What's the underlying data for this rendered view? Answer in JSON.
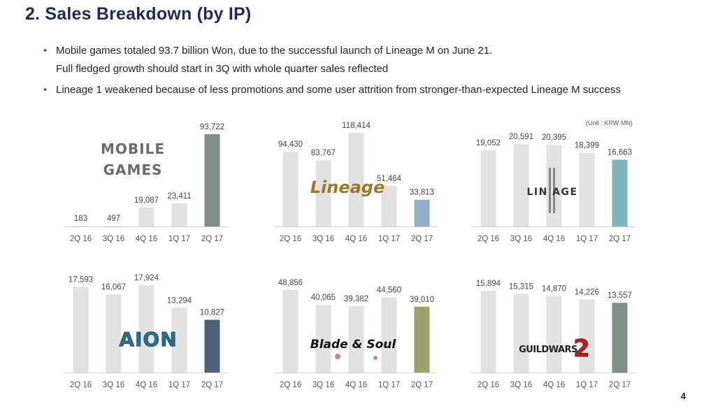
{
  "title": "2. Sales Breakdown (by IP)",
  "bullets": [
    {
      "line1": "Mobile games totaled 93.7 billion Won, due to the successful launch of Lineage M on June 21.",
      "line2": "Full fledged growth should start in 3Q with whole quarter sales reflected"
    },
    {
      "line1": "Lineage 1 weakened because of less promotions and some user attrition from stronger-than-expected Lineage M success",
      "line2": ""
    }
  ],
  "unit_note": "(Unit : KRW MN)",
  "page_number": "4",
  "chart_data": [
    {
      "type": "bar",
      "name_label": "MOBILE GAMES",
      "categories": [
        "2Q 16",
        "3Q 16",
        "4Q 16",
        "1Q 17",
        "2Q 17"
      ],
      "values": [
        183,
        497,
        19087,
        23411,
        93722
      ],
      "labels": [
        "183",
        "497",
        "19,087",
        "23,411",
        "93,722"
      ],
      "highlight_color": "#7f8f88",
      "base_color": "#e2e2e2"
    },
    {
      "type": "bar",
      "name_label": "Lineage",
      "categories": [
        "2Q 16",
        "3Q 16",
        "4Q 16",
        "1Q 17",
        "2Q 17"
      ],
      "values": [
        94430,
        83767,
        118414,
        51464,
        33813
      ],
      "labels": [
        "94,430",
        "83,767",
        "118,414",
        "51,464",
        "33,813"
      ],
      "highlight_color": "#93aec8",
      "base_color": "#e2e2e2"
    },
    {
      "type": "bar",
      "name_label": "LINEAGE II",
      "categories": [
        "2Q 16",
        "3Q 16",
        "4Q 16",
        "1Q 17",
        "2Q 17"
      ],
      "values": [
        19052,
        20591,
        20395,
        18399,
        16663
      ],
      "labels": [
        "19,052",
        "20,591",
        "20,395",
        "18,399",
        "16,663"
      ],
      "highlight_color": "#7fb4b8",
      "base_color": "#e2e2e2"
    },
    {
      "type": "bar",
      "name_label": "AION",
      "categories": [
        "2Q 16",
        "3Q 16",
        "4Q 16",
        "1Q 17",
        "2Q 17"
      ],
      "values": [
        17593,
        16067,
        17924,
        13294,
        10827
      ],
      "labels": [
        "17,593",
        "16,067",
        "17,924",
        "13,294",
        "10,827"
      ],
      "highlight_color": "#4e6177",
      "base_color": "#e2e2e2"
    },
    {
      "type": "bar",
      "name_label": "Blade & Soul",
      "categories": [
        "2Q 16",
        "3Q 16",
        "4Q 16",
        "1Q 17",
        "2Q 17"
      ],
      "values": [
        48856,
        40065,
        39382,
        44560,
        39010
      ],
      "labels": [
        "48,856",
        "40,065",
        "39,382",
        "44,560",
        "39,010"
      ],
      "highlight_color": "#9ca06a",
      "base_color": "#e2e2e2"
    },
    {
      "type": "bar",
      "name_label": "GUILD WARS 2",
      "categories": [
        "2Q 16",
        "3Q 16",
        "4Q 16",
        "1Q 17",
        "2Q 17"
      ],
      "values": [
        15894,
        15315,
        14870,
        14226,
        13557
      ],
      "labels": [
        "15,894",
        "15,315",
        "14,870",
        "14,226",
        "13,557"
      ],
      "highlight_color": "#7f8f88",
      "base_color": "#e2e2e2"
    }
  ]
}
